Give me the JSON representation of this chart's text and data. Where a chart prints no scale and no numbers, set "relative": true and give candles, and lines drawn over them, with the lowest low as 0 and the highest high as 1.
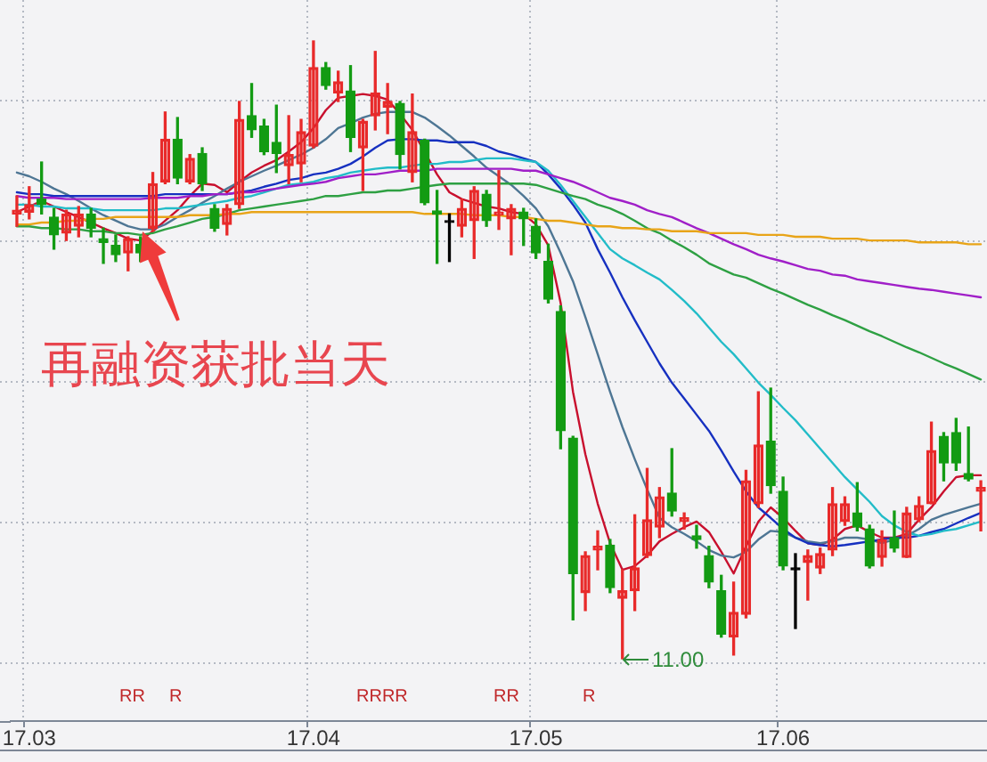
{
  "chart_data": {
    "type": "candlestick",
    "relative": true,
    "grid": true,
    "categories": [
      null,
      "17.03",
      null,
      null,
      null,
      null,
      null,
      null,
      null,
      null,
      null,
      null,
      null,
      null,
      null,
      null,
      null,
      null,
      null,
      null,
      null,
      null,
      null,
      null,
      "17.04",
      null,
      null,
      null,
      null,
      null,
      null,
      null,
      null,
      null,
      null,
      null,
      null,
      null,
      null,
      null,
      null,
      null,
      "17.05",
      null,
      null,
      null,
      null,
      null,
      null,
      null,
      null,
      null,
      null,
      null,
      null,
      null,
      null,
      null,
      null,
      null,
      null,
      null,
      "17.06",
      null,
      null,
      null,
      null,
      null,
      null,
      null,
      null,
      null,
      null,
      null,
      null,
      null,
      null,
      null,
      null
    ],
    "ohlc": [
      [
        0.72,
        0.749,
        0.7,
        0.726
      ],
      [
        0.723,
        0.764,
        0.712,
        0.735
      ],
      [
        0.744,
        0.804,
        0.72,
        0.735
      ],
      [
        0.715,
        0.729,
        0.663,
        0.686
      ],
      [
        0.689,
        0.726,
        0.677,
        0.72
      ],
      [
        0.7,
        0.732,
        0.683,
        0.72
      ],
      [
        0.72,
        0.729,
        0.683,
        0.697
      ],
      [
        0.68,
        0.697,
        0.64,
        0.674
      ],
      [
        0.669,
        0.686,
        0.643,
        0.654
      ],
      [
        0.657,
        0.683,
        0.628,
        0.68
      ],
      [
        0.671,
        0.683,
        0.643,
        0.657
      ],
      [
        0.697,
        0.787,
        0.692,
        0.769
      ],
      [
        0.772,
        0.885,
        0.769,
        0.841
      ],
      [
        0.841,
        0.876,
        0.769,
        0.778
      ],
      [
        0.772,
        0.816,
        0.769,
        0.81
      ],
      [
        0.818,
        0.827,
        0.758,
        0.769
      ],
      [
        0.729,
        0.735,
        0.692,
        0.697
      ],
      [
        0.703,
        0.735,
        0.686,
        0.729
      ],
      [
        0.735,
        0.902,
        0.729,
        0.873
      ],
      [
        0.879,
        0.931,
        0.844,
        0.856
      ],
      [
        0.862,
        0.873,
        0.816,
        0.821
      ],
      [
        0.836,
        0.896,
        0.787,
        0.818
      ],
      [
        0.798,
        0.879,
        0.769,
        0.816
      ],
      [
        0.801,
        0.873,
        0.772,
        0.853
      ],
      [
        0.83,
        1,
        0.827,
        0.957
      ],
      [
        0.957,
        0.965,
        0.922,
        0.928
      ],
      [
        0.916,
        0.951,
        0.902,
        0.934
      ],
      [
        0.919,
        0.96,
        0.821,
        0.844
      ],
      [
        0.827,
        0.873,
        0.758,
        0.87
      ],
      [
        0.879,
        0.983,
        0.856,
        0.916
      ],
      [
        0.893,
        0.931,
        0.85,
        0.902
      ],
      [
        0.899,
        0.902,
        0.793,
        0.816
      ],
      [
        0.787,
        0.914,
        0.772,
        0.853
      ],
      [
        0.839,
        0.841,
        0.735,
        0.738
      ],
      [
        0.725,
        0.758,
        0.64,
        0.72
      ],
      [
        0.709,
        0.72,
        0.643,
        0.709
      ],
      [
        0.7,
        0.744,
        0.683,
        0.729
      ],
      [
        0.709,
        0.764,
        0.648,
        0.758
      ],
      [
        0.752,
        0.758,
        0.7,
        0.709
      ],
      [
        0.718,
        0.79,
        0.695,
        0.723
      ],
      [
        0.712,
        0.735,
        0.654,
        0.729
      ],
      [
        0.723,
        0.729,
        0.669,
        0.712
      ],
      [
        0.7,
        0.712,
        0.648,
        0.657
      ],
      [
        0.643,
        0.671,
        0.576,
        0.582
      ],
      [
        0.562,
        0.571,
        0.34,
        0.369
      ],
      [
        0.357,
        0.36,
        0.063,
        0.138
      ],
      [
        0.107,
        0.173,
        0.078,
        0.167
      ],
      [
        0.176,
        0.207,
        0.144,
        0.182
      ],
      [
        0.184,
        0.193,
        0.107,
        0.115
      ],
      [
        0.098,
        0.144,
        0,
        0.11
      ],
      [
        0.11,
        0.233,
        0.078,
        0.147
      ],
      [
        0.167,
        0.308,
        0.164,
        0.225
      ],
      [
        0.213,
        0.277,
        0.196,
        0.262
      ],
      [
        0.268,
        0.34,
        0.231,
        0.239
      ],
      [
        0.222,
        0.236,
        0.21,
        0.228
      ],
      [
        0.199,
        0.216,
        0.179,
        0.193
      ],
      [
        0.167,
        0.182,
        0.115,
        0.124
      ],
      [
        0.11,
        0.135,
        0.035,
        0.04
      ],
      [
        0.035,
        0.124,
        0.006,
        0.075
      ],
      [
        0.072,
        0.305,
        0.066,
        0.288
      ],
      [
        0.251,
        0.432,
        0.245,
        0.346
      ],
      [
        0.352,
        0.438,
        0.268,
        0.28
      ],
      [
        0.271,
        0.294,
        0.144,
        0.15
      ],
      [
        0.147,
        0.17,
        0.049,
        0.147
      ],
      [
        0.156,
        0.176,
        0.095,
        0.167
      ],
      [
        0.147,
        0.179,
        0.138,
        0.17
      ],
      [
        0.176,
        0.277,
        0.167,
        0.251
      ],
      [
        0.222,
        0.262,
        0.216,
        0.251
      ],
      [
        0.236,
        0.285,
        0.207,
        0.213
      ],
      [
        0.21,
        0.216,
        0.147,
        0.15
      ],
      [
        0.164,
        0.207,
        0.15,
        0.193
      ],
      [
        0.196,
        0.239,
        0.173,
        0.179
      ],
      [
        0.164,
        0.245,
        0.164,
        0.236
      ],
      [
        0.225,
        0.262,
        0.222,
        0.248
      ],
      [
        0.251,
        0.383,
        0.251,
        0.337
      ],
      [
        0.36,
        0.366,
        0.288,
        0.317
      ],
      [
        0.366,
        0.389,
        0.305,
        0.317
      ],
      [
        0.3,
        0.375,
        0.288,
        0.291
      ],
      [
        0.271,
        0.288,
        0.207,
        0.277
      ]
    ],
    "colors": [
      "#e82a2a",
      "#e82a2a",
      "#139b13",
      "#139b13",
      "#e82a2a",
      "#e82a2a",
      "#139b13",
      "#139b13",
      "#139b13",
      "#e82a2a",
      "#139b13",
      "#e82a2a",
      "#e82a2a",
      "#139b13",
      "#e82a2a",
      "#139b13",
      "#139b13",
      "#e82a2a",
      "#e82a2a",
      "#139b13",
      "#139b13",
      "#139b13",
      "#e82a2a",
      "#e82a2a",
      "#e82a2a",
      "#139b13",
      "#e82a2a",
      "#139b13",
      "#e82a2a",
      "#e82a2a",
      "#e82a2a",
      "#139b13",
      "#e82a2a",
      "#139b13",
      "#139b13",
      "#000000",
      "#e82a2a",
      "#e82a2a",
      "#139b13",
      "#e82a2a",
      "#e82a2a",
      "#139b13",
      "#139b13",
      "#139b13",
      "#139b13",
      "#139b13",
      "#e82a2a",
      "#e82a2a",
      "#139b13",
      "#e82a2a",
      "#e82a2a",
      "#e82a2a",
      "#e82a2a",
      "#139b13",
      "#e82a2a",
      "#139b13",
      "#139b13",
      "#139b13",
      "#e82a2a",
      "#e82a2a",
      "#e82a2a",
      "#139b13",
      "#139b13",
      "#000000",
      "#e82a2a",
      "#e82a2a",
      "#e82a2a",
      "#e82a2a",
      "#139b13",
      "#139b13",
      "#e82a2a",
      "#139b13",
      "#e82a2a",
      "#e82a2a",
      "#e82a2a",
      "#139b13",
      "#139b13",
      "#139b13",
      "#e82a2a"
    ],
    "series": [
      {
        "type": "line",
        "color": "#e8a418",
        "values": [
          0.703,
          0.703,
          0.706,
          0.706,
          0.709,
          0.709,
          0.712,
          0.712,
          0.715,
          0.715,
          0.715,
          0.715,
          0.715,
          0.715,
          0.718,
          0.718,
          0.718,
          0.72,
          0.72,
          0.723,
          0.723,
          0.723,
          0.723,
          0.723,
          0.723,
          0.723,
          0.723,
          0.723,
          0.723,
          0.723,
          0.723,
          0.723,
          0.723,
          0.72,
          0.72,
          0.72,
          0.72,
          0.718,
          0.718,
          0.718,
          0.715,
          0.715,
          0.712,
          0.709,
          0.709,
          0.706,
          0.703,
          0.7,
          0.7,
          0.697,
          0.697,
          0.695,
          0.695,
          0.692,
          0.692,
          0.692,
          0.689,
          0.689,
          0.689,
          0.689,
          0.686,
          0.686,
          0.686,
          0.683,
          0.683,
          0.683,
          0.68,
          0.68,
          0.68,
          0.677,
          0.677,
          0.677,
          0.677,
          0.674,
          0.674,
          0.674,
          0.674,
          0.671,
          0.671
        ]
      },
      {
        "type": "line",
        "color": "#2ea043",
        "values": [
          0.7,
          0.7,
          0.697,
          0.697,
          0.695,
          0.695,
          0.692,
          0.692,
          0.689,
          0.689,
          0.686,
          0.689,
          0.695,
          0.7,
          0.706,
          0.712,
          0.715,
          0.72,
          0.726,
          0.729,
          0.732,
          0.735,
          0.738,
          0.741,
          0.744,
          0.749,
          0.749,
          0.752,
          0.755,
          0.755,
          0.758,
          0.758,
          0.761,
          0.764,
          0.767,
          0.769,
          0.769,
          0.769,
          0.769,
          0.769,
          0.769,
          0.769,
          0.767,
          0.761,
          0.755,
          0.749,
          0.744,
          0.735,
          0.729,
          0.72,
          0.709,
          0.697,
          0.689,
          0.677,
          0.666,
          0.654,
          0.64,
          0.631,
          0.622,
          0.617,
          0.608,
          0.599,
          0.591,
          0.582,
          0.573,
          0.565,
          0.556,
          0.548,
          0.539,
          0.53,
          0.522,
          0.513,
          0.504,
          0.496,
          0.487,
          0.478,
          0.47,
          0.461,
          0.452
        ]
      },
      {
        "type": "line",
        "color": "#a01fc8",
        "values": [
          0.749,
          0.746,
          0.746,
          0.746,
          0.744,
          0.744,
          0.744,
          0.744,
          0.744,
          0.744,
          0.744,
          0.746,
          0.746,
          0.746,
          0.749,
          0.749,
          0.752,
          0.752,
          0.755,
          0.755,
          0.758,
          0.761,
          0.764,
          0.767,
          0.769,
          0.772,
          0.778,
          0.781,
          0.784,
          0.784,
          0.787,
          0.79,
          0.79,
          0.79,
          0.793,
          0.793,
          0.793,
          0.793,
          0.793,
          0.793,
          0.793,
          0.79,
          0.79,
          0.784,
          0.778,
          0.772,
          0.764,
          0.755,
          0.746,
          0.741,
          0.735,
          0.726,
          0.72,
          0.715,
          0.706,
          0.697,
          0.689,
          0.68,
          0.671,
          0.663,
          0.654,
          0.648,
          0.643,
          0.637,
          0.631,
          0.628,
          0.622,
          0.62,
          0.614,
          0.611,
          0.608,
          0.605,
          0.602,
          0.599,
          0.597,
          0.594,
          0.591,
          0.588,
          0.585
        ]
      },
      {
        "type": "line",
        "color": "#22bcc8",
        "values": [
          0.735,
          0.735,
          0.732,
          0.732,
          0.729,
          0.729,
          0.729,
          0.726,
          0.726,
          0.726,
          0.726,
          0.726,
          0.729,
          0.729,
          0.732,
          0.735,
          0.738,
          0.741,
          0.746,
          0.749,
          0.755,
          0.761,
          0.767,
          0.769,
          0.772,
          0.778,
          0.781,
          0.787,
          0.79,
          0.793,
          0.795,
          0.795,
          0.798,
          0.801,
          0.801,
          0.804,
          0.804,
          0.807,
          0.81,
          0.81,
          0.81,
          0.807,
          0.804,
          0.79,
          0.767,
          0.741,
          0.715,
          0.689,
          0.663,
          0.648,
          0.637,
          0.625,
          0.614,
          0.597,
          0.579,
          0.559,
          0.536,
          0.513,
          0.493,
          0.47,
          0.447,
          0.427,
          0.406,
          0.386,
          0.363,
          0.34,
          0.317,
          0.294,
          0.274,
          0.254,
          0.231,
          0.216,
          0.205,
          0.199,
          0.202,
          0.207,
          0.21,
          0.216,
          0.222
        ]
      },
      {
        "type": "line",
        "color": "#1630c0",
        "values": [
          0.755,
          0.752,
          0.752,
          0.749,
          0.749,
          0.749,
          0.749,
          0.749,
          0.749,
          0.749,
          0.749,
          0.749,
          0.752,
          0.752,
          0.752,
          0.752,
          0.752,
          0.752,
          0.755,
          0.758,
          0.764,
          0.769,
          0.775,
          0.778,
          0.784,
          0.787,
          0.793,
          0.801,
          0.813,
          0.827,
          0.839,
          0.841,
          0.841,
          0.839,
          0.839,
          0.836,
          0.836,
          0.836,
          0.83,
          0.821,
          0.816,
          0.81,
          0.804,
          0.784,
          0.761,
          0.735,
          0.706,
          0.663,
          0.625,
          0.585,
          0.548,
          0.513,
          0.478,
          0.447,
          0.421,
          0.395,
          0.369,
          0.337,
          0.303,
          0.271,
          0.245,
          0.228,
          0.21,
          0.196,
          0.187,
          0.184,
          0.182,
          0.184,
          0.187,
          0.19,
          0.193,
          0.196,
          0.196,
          0.199,
          0.205,
          0.21,
          0.219,
          0.228,
          0.236
        ]
      },
      {
        "type": "line",
        "color": "#4e7694",
        "values": [
          0.787,
          0.781,
          0.772,
          0.761,
          0.752,
          0.741,
          0.729,
          0.718,
          0.709,
          0.7,
          0.695,
          0.695,
          0.703,
          0.715,
          0.726,
          0.738,
          0.749,
          0.761,
          0.772,
          0.781,
          0.79,
          0.798,
          0.807,
          0.816,
          0.827,
          0.841,
          0.859,
          0.867,
          0.876,
          0.882,
          0.885,
          0.885,
          0.885,
          0.876,
          0.862,
          0.847,
          0.83,
          0.813,
          0.795,
          0.781,
          0.767,
          0.749,
          0.729,
          0.7,
          0.657,
          0.611,
          0.553,
          0.493,
          0.432,
          0.375,
          0.323,
          0.274,
          0.228,
          0.213,
          0.202,
          0.19,
          0.176,
          0.167,
          0.164,
          0.173,
          0.193,
          0.207,
          0.205,
          0.196,
          0.19,
          0.187,
          0.19,
          0.196,
          0.196,
          0.193,
          0.187,
          0.193,
          0.199,
          0.21,
          0.225,
          0.233,
          0.239,
          0.245,
          0.251
        ]
      },
      {
        "type": "line",
        "color": "#c8102e",
        "values": [
          0.723,
          0.732,
          0.741,
          0.732,
          0.723,
          0.715,
          0.706,
          0.697,
          0.689,
          0.68,
          0.677,
          0.692,
          0.709,
          0.726,
          0.749,
          0.769,
          0.767,
          0.755,
          0.772,
          0.787,
          0.798,
          0.807,
          0.821,
          0.836,
          0.859,
          0.888,
          0.908,
          0.911,
          0.914,
          0.911,
          0.905,
          0.882,
          0.856,
          null,
          0.784,
          0.755,
          0.744,
          0.738,
          0.732,
          0.729,
          0.723,
          0.72,
          0.703,
          0.669,
          0.576,
          0.432,
          0.331,
          0.251,
          0.187,
          0.144,
          0.15,
          0.167,
          0.19,
          0.202,
          0.213,
          0.222,
          0.205,
          0.173,
          0.138,
          0.182,
          0.222,
          0.245,
          0.228,
          0.207,
          0.187,
          0.184,
          0.193,
          0.21,
          0.216,
          0.205,
          0.196,
          0.196,
          0.202,
          0.225,
          0.245,
          0.271,
          0.294,
          0.297,
          0.297
        ]
      }
    ],
    "annotations": [
      "再融资获批当天",
      "11.00",
      "RR",
      "R",
      "RRRR",
      "RR",
      "R"
    ]
  }
}
